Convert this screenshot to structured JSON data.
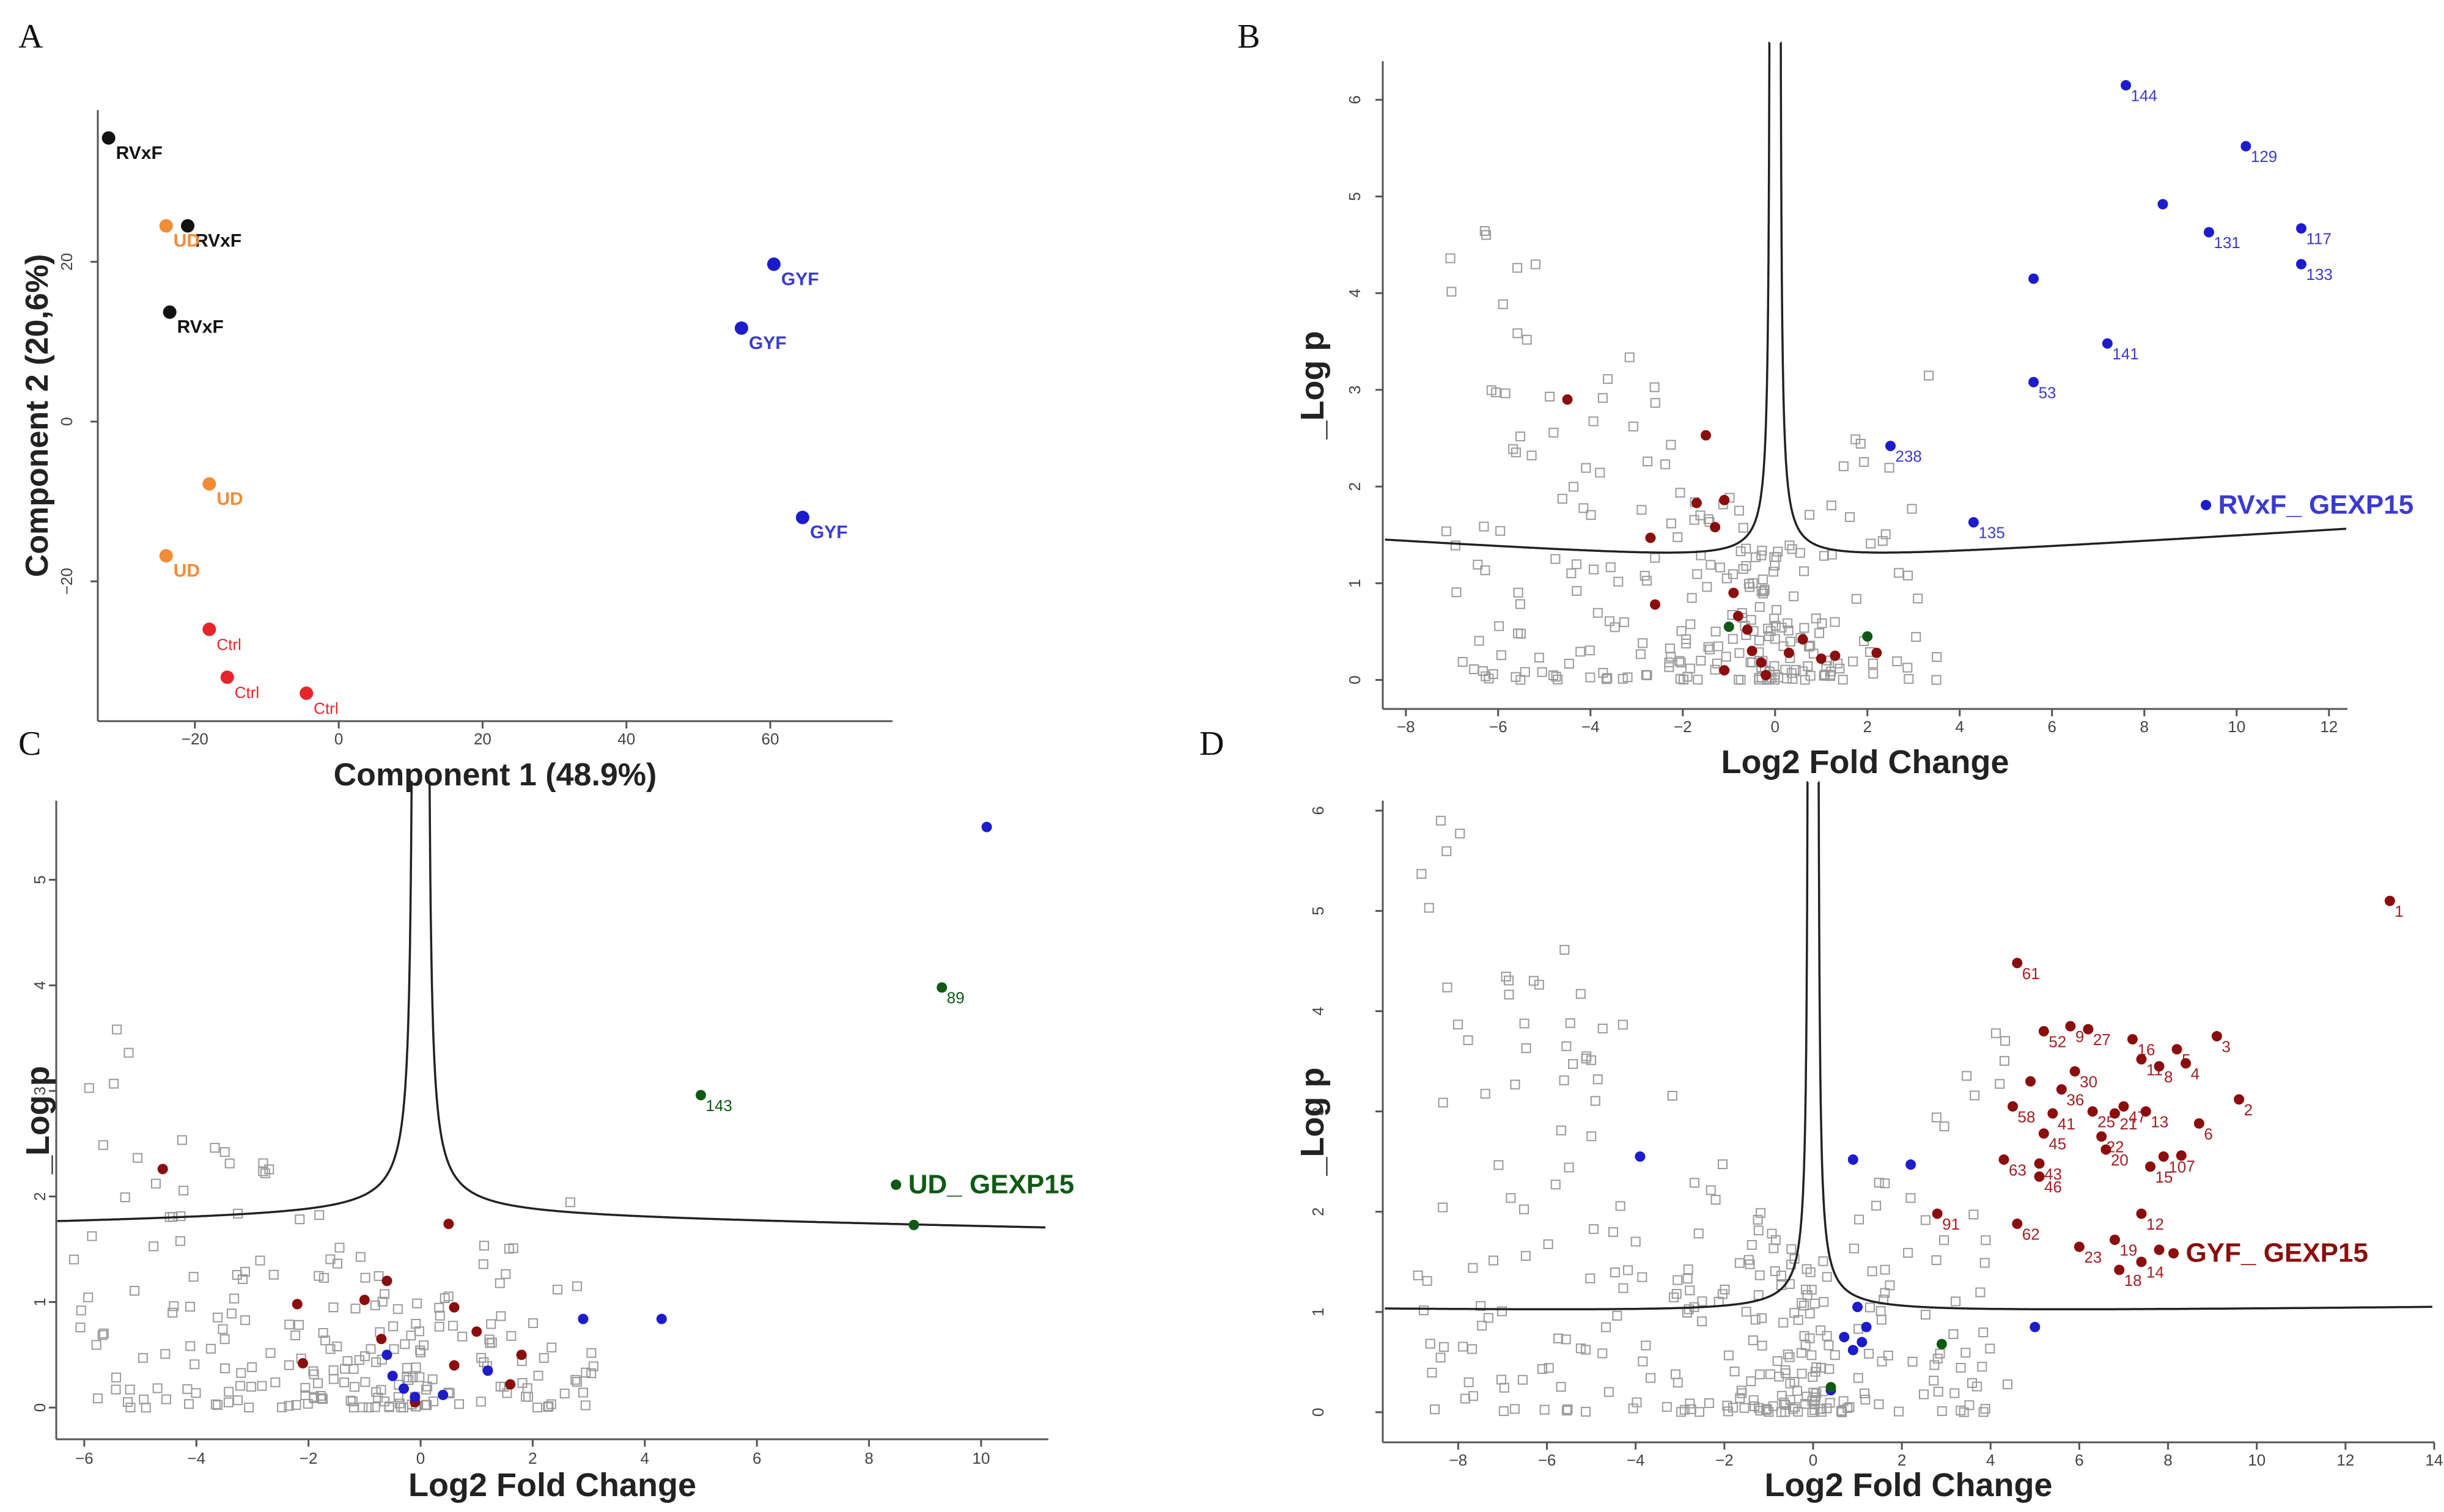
{
  "colors": {
    "black": "#111111",
    "orange": "#f28c38",
    "red": "#e8242b",
    "blue": "#1c1ccc",
    "darkred": "#8b0d0d",
    "darkgreen": "#0e5a14",
    "grey": "#9a9a9a",
    "label_blue": "#3a3ad0",
    "label_red": "#a41e24"
  },
  "panels": {
    "A": {
      "letter": "A"
    },
    "B": {
      "letter": "B"
    },
    "C": {
      "letter": "C"
    },
    "D": {
      "letter": "D"
    }
  },
  "chart_data": [
    {
      "id": "A",
      "type": "scatter",
      "title": "",
      "xlabel": "Component 1 (48.9%)",
      "ylabel": "Component 2 (20,6%)",
      "xlim": [
        -33.5,
        77
      ],
      "ylim": [
        -37.5,
        39
      ],
      "xticks": [
        -20,
        0,
        20,
        40,
        60
      ],
      "yticks": [
        -20,
        0,
        20
      ],
      "series": [
        {
          "name": "RVxF",
          "color": "black",
          "points": [
            {
              "x": -32,
              "y": 35.5,
              "label": "RVxF"
            },
            {
              "x": -21,
              "y": 24.5,
              "label": "RVxF"
            },
            {
              "x": -23.5,
              "y": 13.7,
              "label": "RVxF"
            }
          ]
        },
        {
          "name": "UD",
          "color": "orange",
          "points": [
            {
              "x": -24,
              "y": 24.5,
              "label": "UD"
            },
            {
              "x": -18,
              "y": -7.8,
              "label": "UD"
            },
            {
              "x": -24,
              "y": -16.8,
              "label": "UD"
            }
          ]
        },
        {
          "name": "Ctrl",
          "color": "red",
          "points": [
            {
              "x": -18,
              "y": -26,
              "label": "Ctrl"
            },
            {
              "x": -15.5,
              "y": -32,
              "label": "Ctrl"
            },
            {
              "x": -4.5,
              "y": -34,
              "label": "Ctrl"
            }
          ]
        },
        {
          "name": "GYF",
          "color": "blue",
          "points": [
            {
              "x": 60.5,
              "y": 19.7,
              "label": "GYF"
            },
            {
              "x": 56,
              "y": 11.7,
              "label": "GYF"
            },
            {
              "x": 64.5,
              "y": -12,
              "label": "GYF"
            }
          ]
        }
      ]
    },
    {
      "id": "B",
      "type": "scatter",
      "title": "",
      "legend": "RVxF_ GEXP15",
      "legend_color": "label_blue",
      "xlabel": "Log2 Fold Change",
      "ylabel": "_Log p",
      "xlim": [
        -8.5,
        12.4
      ],
      "ylim": [
        -0.3,
        6.4
      ],
      "xticks": [
        -8,
        -6,
        -4,
        -2,
        0,
        2,
        4,
        6,
        8,
        10,
        12
      ],
      "yticks": [
        0,
        1,
        2,
        3,
        4,
        5,
        6
      ],
      "threshold": {
        "s0": 0.12,
        "c": 0.15,
        "base": 1.18,
        "slope": 0.003
      },
      "highlight": [
        {
          "x": 7.6,
          "y": 6.15,
          "label": "144",
          "color": "blue"
        },
        {
          "x": 10.2,
          "y": 5.52,
          "label": "129",
          "color": "blue"
        },
        {
          "x": 8.4,
          "y": 4.92,
          "label": "",
          "color": "blue"
        },
        {
          "x": 9.4,
          "y": 4.63,
          "label": "131",
          "color": "blue"
        },
        {
          "x": 11.4,
          "y": 4.67,
          "label": "117",
          "color": "blue"
        },
        {
          "x": 11.4,
          "y": 4.3,
          "label": "133",
          "color": "blue"
        },
        {
          "x": 5.6,
          "y": 4.15,
          "label": "",
          "color": "blue"
        },
        {
          "x": 7.2,
          "y": 3.48,
          "label": "141",
          "color": "blue"
        },
        {
          "x": 5.6,
          "y": 3.08,
          "label": "53",
          "color": "blue"
        },
        {
          "x": 2.5,
          "y": 2.42,
          "label": "238",
          "color": "blue"
        },
        {
          "x": 4.3,
          "y": 1.63,
          "label": "135",
          "color": "blue"
        },
        {
          "x": -4.5,
          "y": 2.9,
          "label": "",
          "color": "darkred"
        },
        {
          "x": -1.5,
          "y": 2.53,
          "label": "",
          "color": "darkred"
        },
        {
          "x": -1.7,
          "y": 1.83,
          "label": "",
          "color": "darkred"
        },
        {
          "x": -1.1,
          "y": 1.86,
          "label": "",
          "color": "darkred"
        },
        {
          "x": -1.3,
          "y": 1.58,
          "label": "",
          "color": "darkred"
        },
        {
          "x": -2.7,
          "y": 1.47,
          "label": "",
          "color": "darkred"
        },
        {
          "x": -2.6,
          "y": 0.78,
          "label": "",
          "color": "darkred"
        },
        {
          "x": -0.9,
          "y": 0.9,
          "label": "",
          "color": "darkred"
        },
        {
          "x": -0.8,
          "y": 0.66,
          "label": "",
          "color": "darkred"
        },
        {
          "x": -0.6,
          "y": 0.52,
          "label": "",
          "color": "darkred"
        },
        {
          "x": -0.5,
          "y": 0.3,
          "label": "",
          "color": "darkred"
        },
        {
          "x": -0.3,
          "y": 0.18,
          "label": "",
          "color": "darkred"
        },
        {
          "x": -0.2,
          "y": 0.05,
          "label": "",
          "color": "darkred"
        },
        {
          "x": 0.3,
          "y": 0.28,
          "label": "",
          "color": "darkred"
        },
        {
          "x": 0.6,
          "y": 0.42,
          "label": "",
          "color": "darkred"
        },
        {
          "x": 1.0,
          "y": 0.22,
          "label": "",
          "color": "darkred"
        },
        {
          "x": 1.3,
          "y": 0.25,
          "label": "",
          "color": "darkred"
        },
        {
          "x": 2.2,
          "y": 0.28,
          "label": "",
          "color": "darkred"
        },
        {
          "x": -1.1,
          "y": 0.1,
          "label": "",
          "color": "darkred"
        },
        {
          "x": 2.0,
          "y": 0.45,
          "label": "",
          "color": "darkgreen"
        },
        {
          "x": -1.0,
          "y": 0.55,
          "label": "",
          "color": "darkgreen"
        }
      ]
    },
    {
      "id": "C",
      "type": "scatter",
      "title": "",
      "legend": "UD_ GEXP15",
      "legend_color": "darkgreen",
      "xlabel": "Log2 Fold Change",
      "ylabel": "_Log p",
      "xlim": [
        -6.5,
        11.2
      ],
      "ylim": [
        -0.3,
        5.75
      ],
      "xticks": [
        -6,
        -4,
        -2,
        0,
        2,
        4,
        6,
        8,
        10
      ],
      "yticks": [
        0,
        1,
        2,
        3,
        4,
        5
      ],
      "threshold": {
        "s0": 0.14,
        "c": 0.2,
        "base": 1.8,
        "slope": -0.001
      },
      "highlight": [
        {
          "x": 10.1,
          "y": 5.5,
          "label": "",
          "color": "blue"
        },
        {
          "x": 9.3,
          "y": 3.98,
          "label": "89",
          "color": "darkgreen"
        },
        {
          "x": 5.0,
          "y": 2.96,
          "label": "143",
          "color": "darkgreen"
        },
        {
          "x": 8.8,
          "y": 1.73,
          "label": "",
          "color": "darkgreen"
        },
        {
          "x": 2.9,
          "y": 0.84,
          "label": "",
          "color": "blue"
        },
        {
          "x": 4.3,
          "y": 0.84,
          "label": "",
          "color": "blue"
        },
        {
          "x": 1.2,
          "y": 0.35,
          "label": "",
          "color": "blue"
        },
        {
          "x": -4.6,
          "y": 2.26,
          "label": "",
          "color": "darkred"
        },
        {
          "x": 0.5,
          "y": 1.74,
          "label": "",
          "color": "darkred"
        },
        {
          "x": -0.6,
          "y": 1.2,
          "label": "",
          "color": "darkred"
        },
        {
          "x": -1.0,
          "y": 1.02,
          "label": "",
          "color": "darkred"
        },
        {
          "x": -2.2,
          "y": 0.98,
          "label": "",
          "color": "darkred"
        },
        {
          "x": 0.6,
          "y": 0.95,
          "label": "",
          "color": "darkred"
        },
        {
          "x": 1.0,
          "y": 0.72,
          "label": "",
          "color": "darkred"
        },
        {
          "x": -2.1,
          "y": 0.42,
          "label": "",
          "color": "darkred"
        },
        {
          "x": 1.8,
          "y": 0.5,
          "label": "",
          "color": "darkred"
        },
        {
          "x": 1.6,
          "y": 0.22,
          "label": "",
          "color": "darkred"
        },
        {
          "x": -0.7,
          "y": 0.65,
          "label": "",
          "color": "darkred"
        },
        {
          "x": 0.6,
          "y": 0.4,
          "label": "",
          "color": "darkred"
        },
        {
          "x": -0.1,
          "y": 0.05,
          "label": "",
          "color": "darkred"
        },
        {
          "x": -0.6,
          "y": 0.5,
          "label": "",
          "color": "blue"
        },
        {
          "x": -0.5,
          "y": 0.3,
          "label": "",
          "color": "blue"
        },
        {
          "x": -0.3,
          "y": 0.18,
          "label": "",
          "color": "blue"
        },
        {
          "x": -0.1,
          "y": 0.1,
          "label": "",
          "color": "blue"
        },
        {
          "x": 0.4,
          "y": 0.12,
          "label": "",
          "color": "blue"
        }
      ]
    },
    {
      "id": "D",
      "type": "scatter",
      "title": "",
      "legend": "GYF_ GEXP15",
      "legend_color": "darkred",
      "xlabel": "Log2 Fold Change",
      "ylabel": "_Log p",
      "xlim": [
        -9.7,
        14
      ],
      "ylim": [
        -0.3,
        6.1
      ],
      "xticks": [
        -8,
        -6,
        -4,
        -2,
        0,
        2,
        4,
        6,
        8,
        10,
        12,
        14
      ],
      "yticks": [
        0,
        1,
        2,
        3,
        4,
        5,
        6
      ],
      "threshold": {
        "s0": 0.12,
        "c": 0.16,
        "base": 0.97,
        "slope": 0.0005
      },
      "highlight": [
        {
          "x": 13.0,
          "y": 5.1,
          "label": "1",
          "color": "darkred"
        },
        {
          "x": 4.6,
          "y": 4.48,
          "label": "61",
          "color": "darkred"
        },
        {
          "x": 9.1,
          "y": 3.75,
          "label": "3",
          "color": "darkred"
        },
        {
          "x": 5.2,
          "y": 3.8,
          "label": "52",
          "color": "darkred"
        },
        {
          "x": 5.8,
          "y": 3.85,
          "label": "9",
          "color": "darkred"
        },
        {
          "x": 6.2,
          "y": 3.82,
          "label": "27",
          "color": "darkred"
        },
        {
          "x": 7.2,
          "y": 3.72,
          "label": "16",
          "color": "darkred"
        },
        {
          "x": 8.2,
          "y": 3.62,
          "label": "5",
          "color": "darkred"
        },
        {
          "x": 7.4,
          "y": 3.52,
          "label": "11",
          "color": "darkred"
        },
        {
          "x": 7.8,
          "y": 3.45,
          "label": "8",
          "color": "darkred"
        },
        {
          "x": 8.4,
          "y": 3.48,
          "label": "4",
          "color": "darkred"
        },
        {
          "x": 5.9,
          "y": 3.4,
          "label": "30",
          "color": "darkred"
        },
        {
          "x": 4.9,
          "y": 3.3,
          "label": "",
          "color": "darkred"
        },
        {
          "x": 9.6,
          "y": 3.12,
          "label": "2",
          "color": "darkred"
        },
        {
          "x": 5.6,
          "y": 3.22,
          "label": "36",
          "color": "darkred"
        },
        {
          "x": 7.0,
          "y": 3.05,
          "label": "47",
          "color": "darkred"
        },
        {
          "x": 6.3,
          "y": 3.0,
          "label": "25",
          "color": "darkred"
        },
        {
          "x": 6.8,
          "y": 2.98,
          "label": "21",
          "color": "darkred"
        },
        {
          "x": 7.5,
          "y": 3.0,
          "label": "13",
          "color": "darkred"
        },
        {
          "x": 4.5,
          "y": 3.05,
          "label": "58",
          "color": "darkred"
        },
        {
          "x": 5.4,
          "y": 2.98,
          "label": "41",
          "color": "darkred"
        },
        {
          "x": 5.2,
          "y": 2.78,
          "label": "45",
          "color": "darkred"
        },
        {
          "x": 8.7,
          "y": 2.88,
          "label": "6",
          "color": "darkred"
        },
        {
          "x": 6.5,
          "y": 2.75,
          "label": "22",
          "color": "darkred"
        },
        {
          "x": 6.6,
          "y": 2.62,
          "label": "20",
          "color": "darkred"
        },
        {
          "x": 7.9,
          "y": 2.55,
          "label": "10",
          "color": "darkred"
        },
        {
          "x": 8.3,
          "y": 2.56,
          "label": "7",
          "color": "darkred"
        },
        {
          "x": 7.6,
          "y": 2.45,
          "label": "15",
          "color": "darkred"
        },
        {
          "x": 4.3,
          "y": 2.52,
          "label": "63",
          "color": "darkred"
        },
        {
          "x": 5.1,
          "y": 2.48,
          "label": "43",
          "color": "darkred"
        },
        {
          "x": 5.1,
          "y": 2.35,
          "label": "46",
          "color": "darkred"
        },
        {
          "x": 2.8,
          "y": 1.98,
          "label": "91",
          "color": "darkred"
        },
        {
          "x": 7.4,
          "y": 1.98,
          "label": "12",
          "color": "darkred"
        },
        {
          "x": 4.6,
          "y": 1.88,
          "label": "62",
          "color": "darkred"
        },
        {
          "x": 6.8,
          "y": 1.72,
          "label": "19",
          "color": "darkred"
        },
        {
          "x": 6.0,
          "y": 1.65,
          "label": "23",
          "color": "darkred"
        },
        {
          "x": 7.8,
          "y": 1.62,
          "label": "",
          "color": "darkred"
        },
        {
          "x": 7.4,
          "y": 1.5,
          "label": "14",
          "color": "darkred"
        },
        {
          "x": 6.9,
          "y": 1.42,
          "label": "18",
          "color": "darkred"
        },
        {
          "x": -3.9,
          "y": 2.55,
          "label": "",
          "color": "blue"
        },
        {
          "x": 0.9,
          "y": 2.52,
          "label": "",
          "color": "blue"
        },
        {
          "x": 2.2,
          "y": 2.47,
          "label": "",
          "color": "blue"
        },
        {
          "x": 1.0,
          "y": 1.05,
          "label": "",
          "color": "blue"
        },
        {
          "x": 1.2,
          "y": 0.85,
          "label": "",
          "color": "blue"
        },
        {
          "x": 5.0,
          "y": 0.85,
          "label": "",
          "color": "blue"
        },
        {
          "x": 0.7,
          "y": 0.75,
          "label": "",
          "color": "blue"
        },
        {
          "x": 0.9,
          "y": 0.62,
          "label": "",
          "color": "blue"
        },
        {
          "x": 1.1,
          "y": 0.7,
          "label": "",
          "color": "blue"
        },
        {
          "x": 0.4,
          "y": 0.22,
          "label": "",
          "color": "blue"
        },
        {
          "x": 2.9,
          "y": 0.68,
          "label": "",
          "color": "darkgreen"
        },
        {
          "x": 0.4,
          "y": 0.25,
          "label": "",
          "color": "darkgreen"
        }
      ]
    }
  ]
}
